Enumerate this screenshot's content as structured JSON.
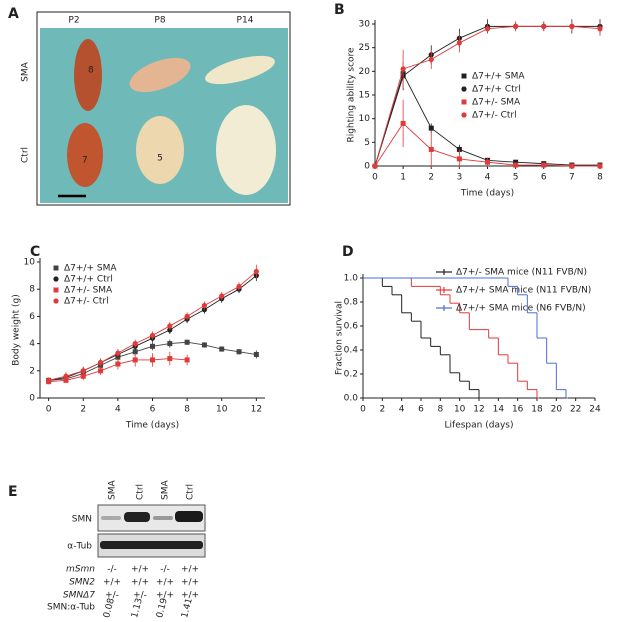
{
  "panel_labels": [
    "A",
    "B",
    "C",
    "D",
    "E"
  ],
  "photo": {
    "columns": [
      "P2",
      "P8",
      "P14"
    ],
    "rows": [
      "SMA",
      "Ctrl"
    ],
    "pup_numbers": [
      "8",
      "7",
      "5"
    ]
  },
  "chart_data": [
    {
      "type": "line",
      "xlabel": "Time (days)",
      "ylabel": "Righting ability score",
      "x": [
        0,
        1,
        2,
        3,
        4,
        5,
        6,
        7,
        8
      ],
      "xlim": [
        0,
        8
      ],
      "xticks": [
        0,
        1,
        2,
        3,
        4,
        5,
        6,
        7,
        8
      ],
      "ylim": [
        0,
        30
      ],
      "yticks": [
        0,
        5,
        10,
        15,
        20,
        25,
        30
      ],
      "series": [
        {
          "name": "Δ7+/+ SMA",
          "color": "#222222",
          "marker": "square",
          "values": [
            0,
            19.5,
            8,
            3.5,
            1.2,
            0.8,
            0.5,
            0.2,
            0.2
          ],
          "errors": [
            0,
            1.5,
            1,
            1,
            0.5,
            0.5,
            0.4,
            0.2,
            0.2
          ]
        },
        {
          "name": "Δ7+/+ Ctrl",
          "color": "#222222",
          "marker": "circle",
          "values": [
            0,
            19,
            23.5,
            27,
            29.5,
            29.5,
            29.5,
            29.5,
            29.5
          ],
          "errors": [
            0,
            3,
            2,
            2,
            1.5,
            1,
            1,
            1.5,
            1.5
          ]
        },
        {
          "name": "Δ7+/- SMA",
          "color": "#e03a3a",
          "marker": "square",
          "values": [
            0,
            9,
            3.5,
            1.5,
            0.8,
            0.2,
            0.2,
            0,
            0
          ],
          "errors": [
            0,
            5,
            4,
            2,
            1,
            0.5,
            0.3,
            0,
            0
          ]
        },
        {
          "name": "Δ7+/- Ctrl",
          "color": "#e03a3a",
          "marker": "circle",
          "values": [
            0,
            20.5,
            22.5,
            26,
            29,
            29.5,
            29.5,
            29.5,
            29
          ],
          "errors": [
            0,
            4,
            2,
            2,
            1,
            1,
            1,
            1,
            1.5
          ]
        }
      ]
    },
    {
      "type": "line",
      "xlabel": "Time (days)",
      "ylabel": "Body weight (g)",
      "x": [
        0,
        1,
        2,
        3,
        4,
        5,
        6,
        7,
        8,
        9,
        10,
        11,
        12
      ],
      "xlim": [
        -0.5,
        12.5
      ],
      "xticks": [
        0,
        2,
        4,
        6,
        8,
        10,
        12
      ],
      "ylim": [
        0,
        10
      ],
      "yticks": [
        0,
        2,
        4,
        6,
        8,
        10
      ],
      "series": [
        {
          "name": "Δ7+/+ SMA",
          "color": "#444444",
          "marker": "square",
          "values": [
            1.3,
            1.4,
            1.8,
            2.4,
            3.0,
            3.4,
            3.8,
            4.0,
            4.1,
            3.9,
            3.6,
            3.4,
            3.2
          ],
          "errors": [
            0.2,
            0.2,
            0.2,
            0.2,
            0.3,
            0.3,
            0.3,
            0.3,
            0.2,
            0.2,
            0.2,
            0.2,
            0.3
          ]
        },
        {
          "name": "Δ7+/+ Ctrl",
          "color": "#222222",
          "marker": "circle",
          "values": [
            1.3,
            1.5,
            2.0,
            2.6,
            3.2,
            3.8,
            4.4,
            5.0,
            5.8,
            6.5,
            7.3,
            8.0,
            9.0
          ],
          "errors": [
            0.2,
            0.2,
            0.3,
            0.3,
            0.3,
            0.3,
            0.3,
            0.3,
            0.3,
            0.3,
            0.3,
            0.3,
            0.4
          ]
        },
        {
          "name": "Δ7+/- SMA",
          "color": "#e03a3a",
          "marker": "square",
          "values": [
            1.2,
            1.3,
            1.6,
            2.0,
            2.5,
            2.8,
            2.8,
            2.9,
            2.8,
            null,
            null,
            null,
            null
          ],
          "errors": [
            0.2,
            0.2,
            0.3,
            0.3,
            0.4,
            0.5,
            0.5,
            0.5,
            0.4,
            null,
            null,
            null,
            null
          ]
        },
        {
          "name": "Δ7+/- Ctrl",
          "color": "#e03a3a",
          "marker": "circle",
          "values": [
            1.3,
            1.6,
            2.0,
            2.6,
            3.3,
            4.0,
            4.6,
            5.3,
            6.0,
            6.8,
            7.5,
            8.2,
            9.3
          ],
          "errors": [
            0.2,
            0.3,
            0.3,
            0.3,
            0.3,
            0.3,
            0.3,
            0.3,
            0.3,
            0.3,
            0.3,
            0.3,
            0.5
          ]
        }
      ]
    },
    {
      "type": "step",
      "xlabel": "Lifespan (days)",
      "ylabel": "Fraction survival",
      "xlim": [
        0,
        24
      ],
      "xticks": [
        0,
        2,
        4,
        6,
        8,
        10,
        12,
        14,
        16,
        18,
        20,
        22,
        24
      ],
      "ylim": [
        0,
        1
      ],
      "yticks": [
        {
          "value": 0,
          "label": "0.0"
        },
        0.2,
        0.4,
        0.6,
        0.8,
        {
          "value": 1,
          "label": "1.0"
        }
      ],
      "series": [
        {
          "name": "Δ7+/- SMA mice (N11 FVB/N)",
          "color": "#222222",
          "x": [
            0,
            2,
            3,
            4,
            5,
            6,
            7,
            8,
            9,
            10,
            11,
            12
          ],
          "values": [
            1,
            0.93,
            0.86,
            0.71,
            0.64,
            0.5,
            0.43,
            0.36,
            0.21,
            0.14,
            0.07,
            0
          ]
        },
        {
          "name": "Δ7+/+ SMA mice (N11 FVB/N)",
          "color": "#e03a3a",
          "x": [
            0,
            5,
            8,
            9,
            10,
            11,
            13,
            14,
            15,
            16,
            17,
            18
          ],
          "values": [
            1,
            0.93,
            0.86,
            0.79,
            0.71,
            0.57,
            0.5,
            0.36,
            0.29,
            0.14,
            0.07,
            0
          ]
        },
        {
          "name": "Δ7+/+ SMA mice (N6 FVB/N)",
          "color": "#4a6fd0",
          "x": [
            0,
            15,
            16,
            17,
            18,
            19,
            20,
            21
          ],
          "values": [
            1,
            0.93,
            0.86,
            0.71,
            0.5,
            0.29,
            0.07,
            0
          ]
        }
      ]
    }
  ],
  "blot": {
    "lanes": [
      "SMA",
      "Ctrl",
      "SMA",
      "Ctrl"
    ],
    "bands": [
      "SMN",
      "α-Tub"
    ],
    "genotype_rows": [
      [
        "mSmn",
        "-/-",
        "+/+",
        "-/-",
        "+/+"
      ],
      [
        "SMN2",
        "+/+",
        "+/+",
        "+/+",
        "+/+"
      ],
      [
        "SMNΔ7",
        "+/-",
        "+/-",
        "+/+",
        "+/+"
      ]
    ],
    "ratio_label": "SMN:α-Tub",
    "ratios": [
      0.08,
      1.13,
      0.19,
      1.41
    ]
  }
}
